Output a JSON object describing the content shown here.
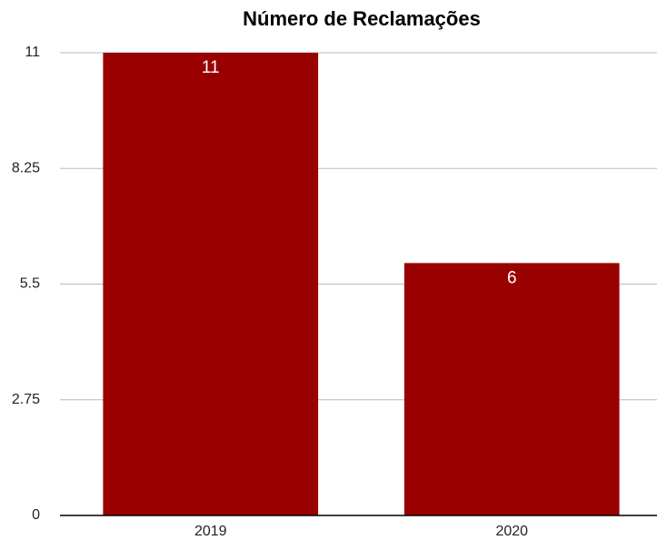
{
  "chart_data": {
    "type": "bar",
    "title": "Número de Reclamações",
    "categories": [
      "2019",
      "2020"
    ],
    "values": [
      11,
      6
    ],
    "color": "#990000",
    "ylim": [
      0,
      11
    ],
    "yticks": [
      0,
      2.75,
      5.5,
      8.25,
      11
    ],
    "grid": true
  }
}
